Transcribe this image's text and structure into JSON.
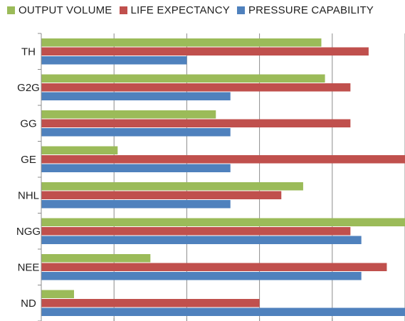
{
  "chart_data": {
    "type": "bar",
    "orientation": "horizontal",
    "categories": [
      "TH",
      "G2G",
      "GG",
      "GE",
      "NHL",
      "NGG",
      "NEE",
      "ND"
    ],
    "series": [
      {
        "name": "OUTPUT VOLUME",
        "color": "#9bbb59",
        "values": [
          3.85,
          3.9,
          2.4,
          1.05,
          3.6,
          5.0,
          1.5,
          0.45
        ]
      },
      {
        "name": "LIFE EXPECTANCY",
        "color": "#c0504d",
        "values": [
          4.5,
          4.25,
          4.25,
          5.0,
          3.3,
          4.25,
          4.75,
          3.0
        ]
      },
      {
        "name": "PRESSURE CAPABILITY",
        "color": "#4f81bd",
        "values": [
          2.0,
          2.6,
          2.6,
          2.6,
          2.6,
          4.4,
          4.4,
          5.0
        ]
      }
    ],
    "xlim": [
      0,
      5
    ],
    "grid": true,
    "legend_position": "top"
  }
}
